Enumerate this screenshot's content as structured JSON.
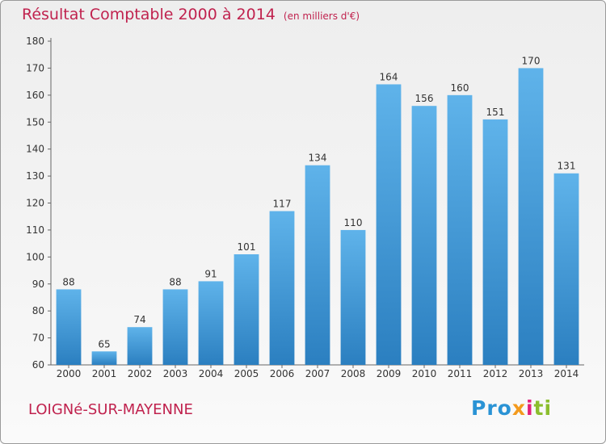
{
  "header": {
    "title": "Résultat Comptable 2000 à 2014",
    "subtitle": "(en milliers d'€)"
  },
  "footer": {
    "commune": "LOIGNé-SUR-MAYENNE",
    "logo": {
      "parts": [
        "Pro",
        "x",
        "i",
        "ti"
      ],
      "colors": [
        "#2a93d5",
        "#f39a1d",
        "#e2207a",
        "#8cbe2e"
      ]
    }
  },
  "chart_data": {
    "type": "bar",
    "title": "Résultat Comptable 2000 à 2014",
    "subtitle": "(en milliers d'€)",
    "categories": [
      "2000",
      "2001",
      "2002",
      "2003",
      "2004",
      "2005",
      "2006",
      "2007",
      "2008",
      "2009",
      "2010",
      "2011",
      "2012",
      "2013",
      "2014"
    ],
    "values": [
      88,
      65,
      74,
      88,
      91,
      101,
      117,
      134,
      110,
      164,
      156,
      160,
      151,
      170,
      131
    ],
    "ylim": [
      60,
      180
    ],
    "yticks": [
      60,
      70,
      80,
      90,
      100,
      110,
      120,
      130,
      140,
      150,
      160,
      170,
      180
    ],
    "grid": false,
    "bar_color": "#3b96d6"
  }
}
